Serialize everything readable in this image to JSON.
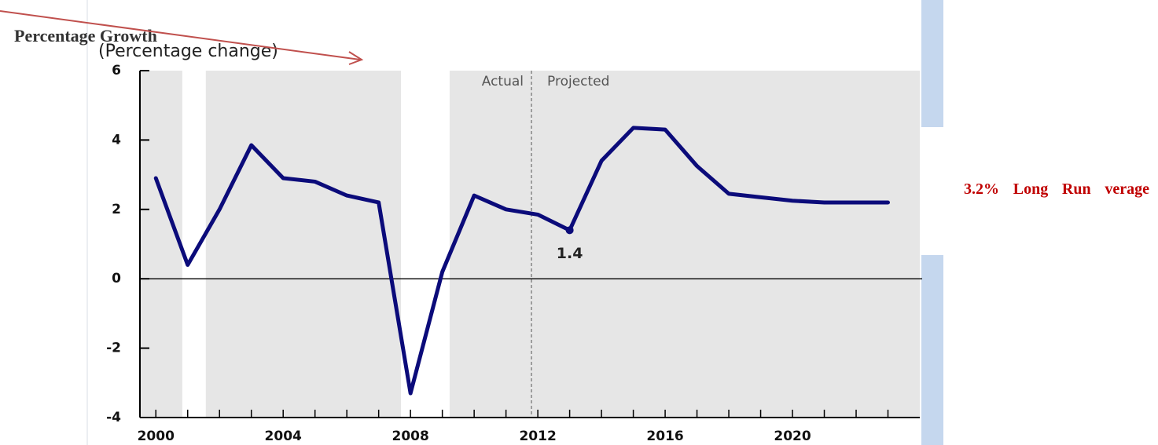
{
  "chart_data": {
    "type": "line",
    "title": "Percentage Growth",
    "subtitle": "(Percentage change)",
    "x": [
      2000,
      2001,
      2002,
      2003,
      2004,
      2005,
      2006,
      2007,
      2008,
      2009,
      2010,
      2011,
      2012,
      2013,
      2014,
      2015,
      2016,
      2017,
      2018,
      2019,
      2020,
      2021,
      2022,
      2023
    ],
    "series": [
      {
        "name": null,
        "color": "#0b0b7a",
        "values": [
          2.9,
          0.4,
          2.0,
          3.85,
          2.9,
          2.8,
          2.4,
          2.2,
          -3.3,
          0.2,
          2.4,
          2.0,
          1.85,
          1.4,
          3.4,
          4.35,
          4.3,
          3.25,
          2.45,
          2.35,
          2.25,
          2.2,
          2.2,
          2.2
        ]
      }
    ],
    "xlim": [
      1999.5,
      2024
    ],
    "xticks": [
      2000,
      2004,
      2008,
      2012,
      2016,
      2020
    ],
    "ylim": [
      -4,
      6
    ],
    "yticks": [
      -4,
      -2,
      0,
      2,
      4,
      6
    ],
    "recessions": [
      [
        2000.83,
        2001.57
      ],
      [
        2007.7,
        2009.23
      ]
    ],
    "divider": 2011.8,
    "annotations": [
      {
        "text": "Actual"
      },
      {
        "text": "Projected"
      },
      {
        "text": "1.4",
        "x": 2013,
        "y": 1.4
      }
    ],
    "side_note": "3.2% Long Run verage"
  }
}
